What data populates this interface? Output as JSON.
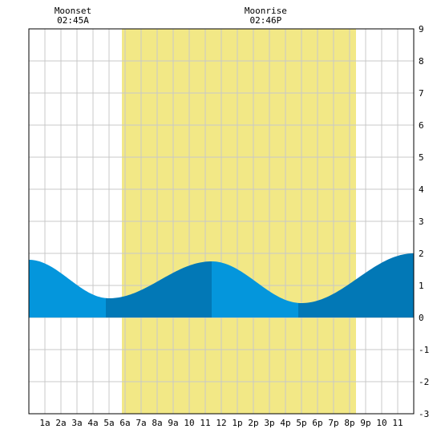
{
  "chart_data": {
    "type": "area",
    "x_tick_labels": [
      "1a",
      "2a",
      "3a",
      "4a",
      "5a",
      "6a",
      "7a",
      "8a",
      "9a",
      "10",
      "11",
      "12",
      "1p",
      "2p",
      "3p",
      "4p",
      "5p",
      "6p",
      "7p",
      "8p",
      "9p",
      "10",
      "11"
    ],
    "y_tick_labels": [
      "-3",
      "-2",
      "-1",
      "0",
      "1",
      "2",
      "3",
      "4",
      "5",
      "6",
      "7",
      "8",
      "9"
    ],
    "xlim": [
      0,
      24
    ],
    "ylim": [
      -3,
      9
    ],
    "grid": true,
    "daylight_hours": [
      5.8,
      20.4
    ],
    "tide_extrema": [
      {
        "hour": 0.0,
        "height": 1.8
      },
      {
        "hour": 5.0,
        "height": 0.6
      },
      {
        "hour": 11.4,
        "height": 1.75
      },
      {
        "hour": 17.0,
        "height": 0.45
      },
      {
        "hour": 24.0,
        "height": 2.0
      }
    ],
    "shade_changes": [
      4.8,
      11.4,
      16.8
    ],
    "annotations": [
      {
        "title": "Moonset",
        "time": "02:45A",
        "hour": 2.75
      },
      {
        "title": "Moonrise",
        "time": "02:46P",
        "hour": 14.77
      }
    ],
    "colors": {
      "daylight": "#f2e886",
      "tide_light": "#0496dc",
      "tide_dark": "#0278b6",
      "grid": "#c8c8c8",
      "frame": "#000000"
    }
  }
}
